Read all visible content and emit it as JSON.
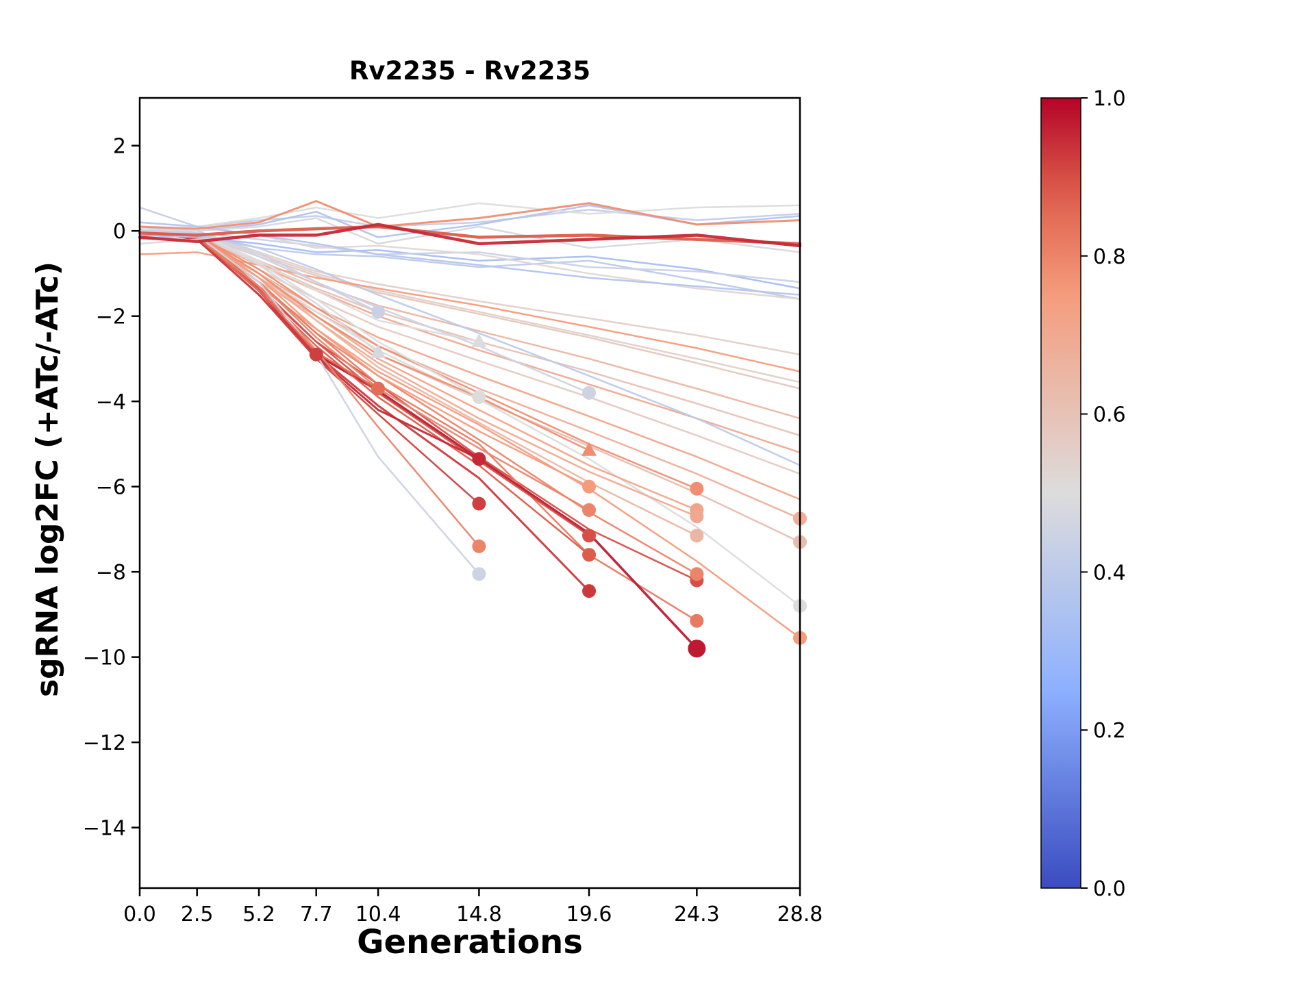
{
  "chart_data": {
    "type": "line",
    "title": "Rv2235 - Rv2235",
    "xlabel": "Generations",
    "ylabel": "sgRNA log2FC (+ATc/-ATc)",
    "x": [
      0.0,
      2.5,
      5.2,
      7.7,
      10.4,
      14.8,
      19.6,
      24.3,
      28.8
    ],
    "xtick_labels": [
      "0.0",
      "2.5",
      "5.2",
      "7.7",
      "10.4",
      "14.8",
      "19.6",
      "24.3",
      "28.8"
    ],
    "ytick_values": [
      2,
      0,
      -2,
      -4,
      -6,
      -8,
      -10,
      -12,
      -14
    ],
    "ytick_labels": [
      "2",
      "0",
      "−2",
      "−4",
      "−6",
      "−8",
      "−10",
      "−12",
      "−14"
    ],
    "xlim": [
      0,
      28.8
    ],
    "ylim": [
      -15.42,
      3.12
    ],
    "grid": false,
    "colorbar": {
      "cmap": "coolwarm",
      "vmin": 0.0,
      "vmax": 1.0,
      "ticks": [
        {
          "v": 1.0,
          "label": "1.0"
        },
        {
          "v": 0.8,
          "label": "0.8"
        },
        {
          "v": 0.6,
          "label": "0.6"
        },
        {
          "v": 0.4,
          "label": "0.4"
        },
        {
          "v": 0.2,
          "label": "0.2"
        },
        {
          "v": 0.0,
          "label": "0.0"
        }
      ]
    },
    "series": [
      {
        "c": 0.55,
        "y": [
          0,
          -0.05,
          -0.5,
          -0.95,
          -1.25,
          -1.65,
          -2.05,
          -2.45,
          -2.9
        ]
      },
      {
        "c": 0.58,
        "y": [
          0,
          -0.1,
          -0.6,
          -1.05,
          -1.45,
          -1.95,
          -2.5,
          -3.1,
          -3.7
        ]
      },
      {
        "c": 0.65,
        "y": [
          0,
          -0.1,
          -0.7,
          -1.25,
          -1.75,
          -2.35,
          -3.0,
          -3.7,
          -4.4
        ]
      },
      {
        "c": 0.7,
        "y": [
          0,
          -0.15,
          -0.8,
          -1.4,
          -2.0,
          -2.8,
          -3.6,
          -4.4,
          -5.2
        ]
      },
      {
        "c": 0.57,
        "y": [
          0,
          -0.1,
          -0.9,
          -1.6,
          -2.25,
          -3.05,
          -3.9,
          -4.8,
          -5.7
        ]
      },
      {
        "c": 0.72,
        "y": [
          0,
          -0.2,
          -1.0,
          -1.8,
          -2.5,
          -3.4,
          -4.35,
          -5.3,
          -6.3
        ]
      },
      {
        "c": 0.68,
        "m": "o",
        "y": [
          0,
          -0.2,
          -1.1,
          -1.9,
          -2.7,
          -3.7,
          -4.7,
          -5.7,
          -6.75
        ]
      },
      {
        "c": 0.62,
        "m": "o",
        "y": [
          0,
          -0.2,
          -1.2,
          -2.0,
          -2.9,
          -3.95,
          -5.05,
          -6.15,
          -7.3
        ]
      },
      {
        "c": 0.5,
        "m": "o",
        "y": [
          0,
          -0.1,
          -1.0,
          -1.9,
          -2.8,
          -3.95,
          -5.35,
          -6.95,
          -8.8
        ]
      },
      {
        "c": 0.75,
        "m": "o",
        "y": [
          0,
          -0.2,
          -1.3,
          -2.3,
          -3.3,
          -4.55,
          -6.05,
          -7.75,
          -9.55
        ]
      },
      {
        "c": 0.6,
        "y": [
          0,
          -0.1,
          -0.75,
          -1.35,
          -1.9,
          -2.6,
          -3.3,
          -4.05,
          -4.8
        ]
      },
      {
        "c": 0.55,
        "y": [
          0,
          -0.05,
          -0.55,
          -1.0,
          -1.4,
          -1.9,
          -2.45,
          -3.0,
          -3.55
        ]
      },
      {
        "c": 0.4,
        "y": [
          0,
          -0.05,
          -0.4,
          -0.9,
          -1.5,
          -2.4,
          -3.4,
          -4.4,
          -5.5
        ]
      },
      {
        "c": 0.75,
        "y": [
          -0.55,
          -0.5,
          -0.8,
          -1.1,
          -1.35,
          -1.75,
          -2.25,
          -2.75,
          -3.3
        ]
      },
      {
        "c": 0.9,
        "m": "o",
        "y": [
          0,
          -0.1,
          -1.3,
          -2.6,
          -3.6,
          -5.3,
          -7.0,
          -8.2
        ]
      },
      {
        "c": 0.8,
        "m": "o",
        "y": [
          0,
          -0.1,
          -1.2,
          -2.4,
          -3.4,
          -4.9,
          -6.6,
          -8.05
        ]
      },
      {
        "c": 0.72,
        "m": "o",
        "y": [
          0,
          -0.1,
          -1.0,
          -2.0,
          -3.0,
          -4.2,
          -5.5,
          -6.55
        ]
      },
      {
        "c": 0.78,
        "m": "o",
        "y": [
          0,
          -0.1,
          -0.9,
          -1.8,
          -2.7,
          -3.8,
          -5.0,
          -6.05
        ]
      },
      {
        "c": 0.7,
        "m": "o",
        "y": [
          0,
          -0.15,
          -1.1,
          -2.1,
          -3.1,
          -4.4,
          -5.65,
          -6.7
        ]
      },
      {
        "c": 0.65,
        "m": "o",
        "y": [
          0,
          -0.1,
          -1.0,
          -2.1,
          -3.2,
          -4.5,
          -5.9,
          -7.15
        ]
      },
      {
        "c": 0.82,
        "m": "o",
        "y": [
          0,
          -0.15,
          -1.2,
          -2.4,
          -3.6,
          -5.0,
          -7.6,
          -9.15
        ]
      },
      {
        "c": 0.97,
        "lw": 3.5,
        "m": "o",
        "ms": 13,
        "y": [
          0,
          -0.15,
          -1.4,
          -2.9,
          -3.75,
          -5.35,
          -7.1,
          -9.8
        ]
      },
      {
        "c": 0.93,
        "lw": 3,
        "m": "o",
        "y": [
          0,
          -0.2,
          -1.5,
          -2.9,
          -4.1,
          -5.8,
          -8.45
        ]
      },
      {
        "c": 0.88,
        "m": "o",
        "y": [
          0,
          -0.15,
          -1.4,
          -2.7,
          -3.9,
          -5.5,
          -7.6
        ]
      },
      {
        "c": 0.9,
        "m": "o",
        "y": [
          0,
          -0.15,
          -1.35,
          -2.6,
          -3.8,
          -5.4,
          -7.15
        ]
      },
      {
        "c": 0.8,
        "m": "o",
        "y": [
          0,
          -0.1,
          -1.2,
          -2.5,
          -3.7,
          -5.1,
          -6.55
        ]
      },
      {
        "c": 0.75,
        "m": "o",
        "y": [
          0,
          -0.1,
          -1.1,
          -2.3,
          -3.4,
          -4.7,
          -6.0
        ]
      },
      {
        "c": 0.78,
        "m": "^",
        "y": [
          0,
          -0.1,
          -1.0,
          -2.0,
          -2.9,
          -3.9,
          -5.15
        ]
      },
      {
        "c": 0.45,
        "m": "o",
        "y": [
          0,
          -0.05,
          -0.6,
          -1.2,
          -1.8,
          -2.7,
          -3.8
        ]
      },
      {
        "c": 0.95,
        "lw": 3,
        "m": "o",
        "y": [
          0,
          -0.2,
          -1.5,
          -2.95,
          -4.2,
          -5.35
        ]
      },
      {
        "c": 0.92,
        "m": "o",
        "y": [
          0,
          -0.2,
          -1.5,
          -3.0,
          -4.3,
          -6.4
        ]
      },
      {
        "c": 0.8,
        "m": "o",
        "y": [
          0,
          -0.15,
          -1.3,
          -2.8,
          -4.6,
          -7.4
        ]
      },
      {
        "c": 0.45,
        "m": "o",
        "y": [
          0,
          -0.1,
          -1.2,
          -2.9,
          -5.3,
          -8.05
        ]
      },
      {
        "c": 0.5,
        "m": "^",
        "y": [
          0,
          -0.05,
          -0.7,
          -1.4,
          -2.1,
          -2.6
        ]
      },
      {
        "c": 0.5,
        "m": "o",
        "y": [
          0,
          -0.05,
          -0.75,
          -1.6,
          -2.6,
          -3.9
        ]
      },
      {
        "c": 0.48,
        "m": "^",
        "y": [
          0,
          -0.05,
          -0.8,
          -1.7,
          -2.85
        ]
      },
      {
        "c": 0.44,
        "m": "o",
        "y": [
          0,
          0,
          -0.5,
          -1.2,
          -1.9
        ]
      },
      {
        "c": 0.85,
        "m": "o",
        "y": [
          0,
          -0.15,
          -1.4,
          -2.85,
          -3.7
        ]
      },
      {
        "c": 0.92,
        "m": "o",
        "y": [
          0,
          -0.2,
          -1.5,
          -2.9
        ]
      },
      {
        "c": 0.42,
        "y": [
          0.55,
          0.1,
          0.25,
          0.35,
          0.1,
          0.2,
          0.5,
          0.25,
          0.4
        ]
      },
      {
        "c": 0.36,
        "y": [
          0.1,
          0,
          0.15,
          0.45,
          -0.15,
          0.15,
          0.6,
          0.15,
          0.35
        ]
      },
      {
        "c": 0.33,
        "y": [
          -0.1,
          -0.15,
          -0.3,
          -0.5,
          -0.45,
          -0.7,
          -0.6,
          -0.9,
          -1.35
        ]
      },
      {
        "c": 0.4,
        "y": [
          -0.2,
          -0.1,
          -0.4,
          -0.55,
          -0.6,
          -0.85,
          -0.7,
          -1.15,
          -1.6
        ]
      },
      {
        "c": 0.44,
        "y": [
          0,
          -0.05,
          -0.2,
          -0.35,
          -0.55,
          -0.5,
          -0.85,
          -0.95,
          -1.2
        ]
      },
      {
        "c": 0.5,
        "y": [
          0.2,
          0.1,
          0.3,
          0.55,
          0.3,
          0.65,
          0.4,
          0.55,
          0.6
        ]
      },
      {
        "c": 0.52,
        "y": [
          -0.3,
          -0.2,
          -0.1,
          -0.4,
          -0.35,
          -0.55,
          -1.0,
          -1.35,
          -1.6
        ]
      },
      {
        "c": 0.48,
        "y": [
          0.05,
          0,
          0.1,
          0.3,
          -0.3,
          0.1,
          -0.4,
          -0.2,
          -0.5
        ]
      },
      {
        "c": 0.37,
        "y": [
          0.2,
          0.1,
          -0.1,
          -0.3,
          -0.55,
          -0.8,
          -1.1,
          -1.3,
          -1.5
        ]
      },
      {
        "c": 0.78,
        "lw": 3,
        "y": [
          0.1,
          0.05,
          0.2,
          0.7,
          0.1,
          0.3,
          0.65,
          0.15,
          0.25
        ]
      },
      {
        "c": 0.88,
        "lw": 4.5,
        "y": [
          -0.05,
          -0.1,
          0,
          0.05,
          0.1,
          -0.15,
          -0.1,
          -0.2,
          -0.3
        ]
      },
      {
        "c": 0.95,
        "lw": 4.5,
        "y": [
          -0.15,
          -0.25,
          -0.1,
          -0.1,
          0.15,
          -0.3,
          -0.2,
          -0.1,
          -0.35
        ]
      }
    ]
  }
}
